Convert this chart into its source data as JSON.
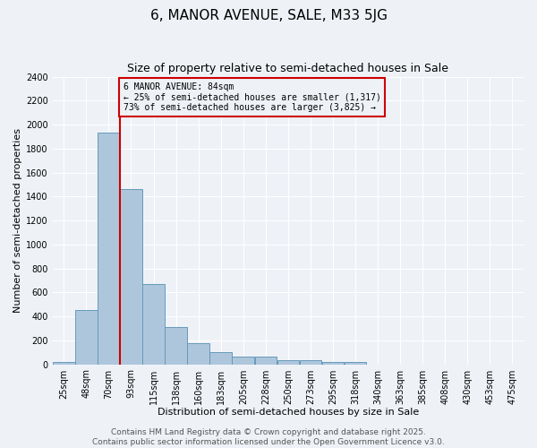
{
  "title": "6, MANOR AVENUE, SALE, M33 5JG",
  "subtitle": "Size of property relative to semi-detached houses in Sale",
  "xlabel": "Distribution of semi-detached houses by size in Sale",
  "ylabel": "Number of semi-detached properties",
  "footer_line1": "Contains HM Land Registry data © Crown copyright and database right 2025.",
  "footer_line2": "Contains public sector information licensed under the Open Government Licence v3.0.",
  "annotation_title": "6 MANOR AVENUE: 84sqm",
  "annotation_line2": "← 25% of semi-detached houses are smaller (1,317)",
  "annotation_line3": "73% of semi-detached houses are larger (3,825) →",
  "property_line_x": 2,
  "categories": [
    "25sqm",
    "48sqm",
    "70sqm",
    "93sqm",
    "115sqm",
    "138sqm",
    "160sqm",
    "183sqm",
    "205sqm",
    "228sqm",
    "250sqm",
    "273sqm",
    "295sqm",
    "318sqm",
    "340sqm",
    "363sqm",
    "385sqm",
    "408sqm",
    "430sqm",
    "453sqm",
    "475sqm"
  ],
  "values": [
    20,
    450,
    1930,
    1460,
    670,
    310,
    180,
    100,
    65,
    65,
    35,
    35,
    20,
    20,
    0,
    0,
    0,
    0,
    0,
    0,
    0
  ],
  "bar_color": "#aec6dc",
  "bar_edge_color": "#6699bb",
  "bar_linewidth": 0.7,
  "vline_color": "#cc0000",
  "annotation_box_color": "#cc0000",
  "background_color": "#eef2f7",
  "grid_color": "#ffffff",
  "ylim": [
    0,
    2400
  ],
  "yticks": [
    0,
    200,
    400,
    600,
    800,
    1000,
    1200,
    1400,
    1600,
    1800,
    2000,
    2200,
    2400
  ],
  "title_fontsize": 11,
  "subtitle_fontsize": 9,
  "axis_label_fontsize": 8,
  "tick_fontsize": 7,
  "annotation_fontsize": 7,
  "footer_fontsize": 6.5
}
